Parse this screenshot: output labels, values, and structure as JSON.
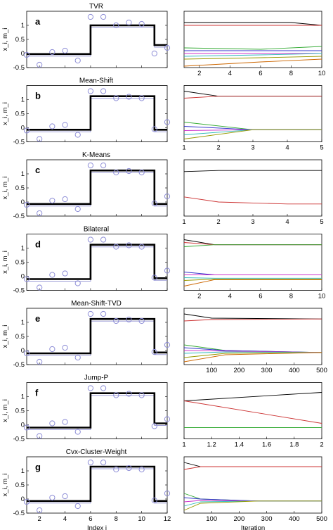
{
  "left_xticks": [
    "2",
    "4",
    "6",
    "8",
    "10",
    "12"
  ],
  "left_ylabel": "x_i, m_i",
  "left_xlabel": "Index i",
  "right_xlabel": "Iteration",
  "colors": {
    "step": "#000000",
    "samples": "#8c8cd6",
    "aux": "#a0a0d8",
    "traj": [
      "#000000",
      "#cc3333",
      "#33aa33",
      "#3333cc",
      "#cc33cc",
      "#33bbbb",
      "#999900",
      "#cc6600"
    ]
  },
  "panels": [
    {
      "letter": "a",
      "title": "TVR"
    },
    {
      "letter": "b",
      "title": "Mean-Shift"
    },
    {
      "letter": "c",
      "title": "K-Means"
    },
    {
      "letter": "d",
      "title": "Bilateral"
    },
    {
      "letter": "e",
      "title": "Mean-Shift-TVD"
    },
    {
      "letter": "f",
      "title": "Jump-P"
    },
    {
      "letter": "g",
      "title": "Cvx-Cluster-Weight"
    }
  ],
  "chart_data": [
    {
      "type": "line",
      "panel": "a",
      "title": "TVR",
      "xlabel": "",
      "ylabel": "x_i, m_i",
      "xlim": [
        1,
        12
      ],
      "ylim": [
        -0.5,
        1.5
      ],
      "yticks": [
        -0.5,
        0,
        0.5,
        1
      ],
      "samples": {
        "x": [
          1,
          2,
          3,
          4,
          5,
          6,
          7,
          8,
          9,
          10,
          11,
          12
        ],
        "y": [
          -0.05,
          -0.4,
          0.05,
          0.1,
          -0.25,
          1.3,
          1.3,
          1.0,
          1.1,
          1.05,
          0.0,
          0.2
        ]
      },
      "estimate": {
        "x": [
          1,
          6,
          6,
          11,
          11,
          12
        ],
        "y": [
          -0.02,
          -0.02,
          1.0,
          1.0,
          0.3,
          0.3
        ]
      }
    },
    {
      "type": "line",
      "panel": "a-iter",
      "title": "",
      "xlabel": "",
      "ylabel": "",
      "xlim": [
        1,
        10
      ],
      "ylim": [
        -0.5,
        1.5
      ],
      "xticks": [
        2,
        4,
        6,
        8,
        10
      ],
      "series": [
        {
          "x": [
            1,
            6,
            8,
            10
          ],
          "y": [
            1.1,
            1.1,
            1.1,
            1.0
          ]
        },
        {
          "x": [
            1,
            10
          ],
          "y": [
            1.0,
            1.0
          ]
        },
        {
          "x": [
            1,
            6,
            10
          ],
          "y": [
            0.2,
            0.15,
            0.25
          ]
        },
        {
          "x": [
            1,
            6,
            10
          ],
          "y": [
            0.1,
            0.1,
            0.1
          ]
        },
        {
          "x": [
            1,
            6,
            10
          ],
          "y": [
            0.0,
            0.0,
            0.0
          ]
        },
        {
          "x": [
            1,
            6,
            10
          ],
          "y": [
            -0.1,
            -0.05,
            0.0
          ]
        },
        {
          "x": [
            1,
            6,
            10
          ],
          "y": [
            -0.2,
            -0.15,
            -0.1
          ]
        },
        {
          "x": [
            1,
            6,
            10
          ],
          "y": [
            -0.45,
            -0.3,
            -0.2
          ]
        }
      ]
    },
    {
      "type": "line",
      "panel": "b",
      "title": "Mean-Shift",
      "xlabel": "",
      "ylabel": "x_i, m_i",
      "xlim": [
        1,
        12
      ],
      "ylim": [
        -0.5,
        1.5
      ],
      "yticks": [
        -0.5,
        0,
        0.5,
        1
      ],
      "samples": {
        "x": [
          1,
          2,
          3,
          4,
          5,
          6,
          7,
          8,
          9,
          10,
          11,
          12
        ],
        "y": [
          -0.1,
          -0.4,
          0.05,
          0.1,
          -0.25,
          1.3,
          1.3,
          1.05,
          1.1,
          1.05,
          -0.05,
          0.2
        ]
      },
      "estimate": {
        "x": [
          1,
          6,
          6,
          11,
          11,
          12
        ],
        "y": [
          -0.07,
          -0.07,
          1.12,
          1.12,
          -0.07,
          -0.07
        ]
      }
    },
    {
      "type": "line",
      "panel": "b-iter",
      "title": "",
      "xlabel": "",
      "ylabel": "",
      "xlim": [
        1,
        5
      ],
      "ylim": [
        -0.5,
        1.5
      ],
      "xticks": [
        1,
        2,
        3,
        4,
        5
      ],
      "series": [
        {
          "x": [
            1,
            2,
            5
          ],
          "y": [
            1.3,
            1.12,
            1.12
          ]
        },
        {
          "x": [
            1,
            2,
            5
          ],
          "y": [
            1.05,
            1.12,
            1.12
          ]
        },
        {
          "x": [
            1,
            3,
            5
          ],
          "y": [
            0.2,
            -0.07,
            -0.07
          ]
        },
        {
          "x": [
            1,
            3,
            5
          ],
          "y": [
            0.05,
            -0.07,
            -0.07
          ]
        },
        {
          "x": [
            1,
            3,
            5
          ],
          "y": [
            -0.1,
            -0.07,
            -0.07
          ]
        },
        {
          "x": [
            1,
            3,
            5
          ],
          "y": [
            -0.25,
            -0.07,
            -0.07
          ]
        },
        {
          "x": [
            1,
            3,
            5
          ],
          "y": [
            -0.4,
            -0.07,
            -0.07
          ]
        }
      ]
    },
    {
      "type": "line",
      "panel": "c",
      "title": "K-Means",
      "xlabel": "",
      "ylabel": "x_i, m_i",
      "xlim": [
        1,
        12
      ],
      "ylim": [
        -0.5,
        1.5
      ],
      "yticks": [
        -0.5,
        0,
        0.5,
        1
      ],
      "samples": {
        "x": [
          1,
          2,
          3,
          4,
          5,
          6,
          7,
          8,
          9,
          10,
          11,
          12
        ],
        "y": [
          -0.1,
          -0.4,
          0.05,
          0.1,
          -0.25,
          1.3,
          1.3,
          1.05,
          1.1,
          1.05,
          -0.05,
          0.2
        ]
      },
      "estimate": {
        "x": [
          1,
          6,
          6,
          11,
          11,
          12
        ],
        "y": [
          -0.07,
          -0.07,
          1.12,
          1.12,
          -0.07,
          -0.07
        ]
      }
    },
    {
      "type": "line",
      "panel": "c-iter",
      "title": "",
      "xlabel": "",
      "ylabel": "",
      "xlim": [
        1,
        5
      ],
      "ylim": [
        -0.5,
        1.5
      ],
      "xticks": [
        1,
        2,
        3,
        4,
        5
      ],
      "series": [
        {
          "x": [
            1,
            2,
            5
          ],
          "y": [
            1.08,
            1.12,
            1.12
          ]
        },
        {
          "x": [
            1,
            2,
            4,
            5
          ],
          "y": [
            0.18,
            0.0,
            -0.07,
            -0.07
          ]
        }
      ]
    },
    {
      "type": "line",
      "panel": "d",
      "title": "Bilateral",
      "xlabel": "",
      "ylabel": "x_i, m_i",
      "xlim": [
        1,
        12
      ],
      "ylim": [
        -0.5,
        1.5
      ],
      "yticks": [
        -0.5,
        0,
        0.5,
        1
      ],
      "samples": {
        "x": [
          1,
          2,
          3,
          4,
          5,
          6,
          7,
          8,
          9,
          10,
          11,
          12
        ],
        "y": [
          -0.1,
          -0.4,
          0.05,
          0.1,
          -0.25,
          1.3,
          1.3,
          1.05,
          1.1,
          1.05,
          -0.05,
          0.2
        ]
      },
      "estimate": {
        "x": [
          1,
          6,
          6,
          11,
          11,
          12
        ],
        "y": [
          -0.1,
          -0.1,
          1.12,
          1.12,
          -0.07,
          -0.07
        ]
      }
    },
    {
      "type": "line",
      "panel": "d-iter",
      "title": "",
      "xlabel": "",
      "ylabel": "",
      "xlim": [
        1,
        10
      ],
      "ylim": [
        -0.5,
        1.5
      ],
      "xticks": [
        2,
        4,
        6,
        8,
        10
      ],
      "series": [
        {
          "x": [
            1,
            3,
            10
          ],
          "y": [
            1.3,
            1.12,
            1.12
          ]
        },
        {
          "x": [
            1,
            3,
            10
          ],
          "y": [
            1.2,
            1.12,
            1.12
          ]
        },
        {
          "x": [
            1,
            3,
            10
          ],
          "y": [
            1.05,
            1.12,
            1.12
          ]
        },
        {
          "x": [
            1,
            3,
            10
          ],
          "y": [
            0.15,
            0.05,
            0.05
          ]
        },
        {
          "x": [
            1,
            3,
            10
          ],
          "y": [
            0.05,
            0.05,
            0.05
          ]
        },
        {
          "x": [
            1,
            3,
            10
          ],
          "y": [
            -0.05,
            -0.07,
            -0.07
          ]
        },
        {
          "x": [
            1,
            3,
            10
          ],
          "y": [
            -0.15,
            -0.1,
            -0.1
          ]
        },
        {
          "x": [
            1,
            3,
            10
          ],
          "y": [
            -0.35,
            -0.12,
            -0.12
          ]
        }
      ]
    },
    {
      "type": "line",
      "panel": "e",
      "title": "Mean-Shift-TVD",
      "xlabel": "",
      "ylabel": "x_i, m_i",
      "xlim": [
        1,
        12
      ],
      "ylim": [
        -0.5,
        1.5
      ],
      "yticks": [
        -0.5,
        0,
        0.5,
        1
      ],
      "samples": {
        "x": [
          1,
          2,
          3,
          4,
          5,
          6,
          7,
          8,
          9,
          10,
          11,
          12
        ],
        "y": [
          -0.1,
          -0.4,
          0.05,
          0.1,
          -0.25,
          1.3,
          1.3,
          1.05,
          1.1,
          1.05,
          -0.05,
          0.2
        ]
      },
      "estimate": {
        "x": [
          1,
          6,
          6,
          11,
          11,
          12
        ],
        "y": [
          -0.1,
          -0.1,
          1.12,
          1.12,
          -0.07,
          -0.07
        ]
      }
    },
    {
      "type": "line",
      "panel": "e-iter",
      "title": "",
      "xlabel": "",
      "ylabel": "",
      "xlim": [
        0,
        500
      ],
      "ylim": [
        -0.5,
        1.5
      ],
      "xticks": [
        100,
        200,
        300,
        400,
        500
      ],
      "series": [
        {
          "x": [
            0,
            100,
            500
          ],
          "y": [
            1.3,
            1.15,
            1.12
          ]
        },
        {
          "x": [
            0,
            100,
            500
          ],
          "y": [
            1.05,
            1.1,
            1.12
          ]
        },
        {
          "x": [
            0,
            150,
            500
          ],
          "y": [
            0.2,
            0.0,
            -0.07
          ]
        },
        {
          "x": [
            0,
            150,
            500
          ],
          "y": [
            0.1,
            0.0,
            -0.07
          ]
        },
        {
          "x": [
            0,
            150,
            500
          ],
          "y": [
            0.0,
            -0.02,
            -0.07
          ]
        },
        {
          "x": [
            0,
            150,
            500
          ],
          "y": [
            -0.1,
            -0.05,
            -0.07
          ]
        },
        {
          "x": [
            0,
            150,
            500
          ],
          "y": [
            -0.25,
            -0.1,
            -0.07
          ]
        },
        {
          "x": [
            0,
            150,
            500
          ],
          "y": [
            -0.4,
            -0.15,
            -0.07
          ]
        }
      ]
    },
    {
      "type": "line",
      "panel": "f",
      "title": "Jump-P",
      "xlabel": "",
      "ylabel": "x_i, m_i",
      "xlim": [
        1,
        12
      ],
      "ylim": [
        -0.5,
        1.5
      ],
      "yticks": [
        -0.5,
        0,
        0.5,
        1
      ],
      "samples": {
        "x": [
          1,
          2,
          3,
          4,
          5,
          6,
          7,
          8,
          9,
          10,
          11,
          12
        ],
        "y": [
          -0.1,
          -0.4,
          0.05,
          0.1,
          -0.25,
          1.3,
          1.3,
          1.05,
          1.1,
          1.05,
          -0.05,
          0.2
        ]
      },
      "estimate": {
        "x": [
          1,
          6,
          6,
          11,
          11,
          12
        ],
        "y": [
          -0.1,
          -0.1,
          1.12,
          1.12,
          0.05,
          0.05
        ]
      }
    },
    {
      "type": "line",
      "panel": "f-iter",
      "title": "",
      "xlabel": "",
      "ylabel": "",
      "xlim": [
        1,
        2
      ],
      "ylim": [
        -0.5,
        1.5
      ],
      "xticks": [
        1,
        1.2,
        1.4,
        1.6,
        1.8,
        2
      ],
      "series": [
        {
          "x": [
            1,
            2
          ],
          "y": [
            0.85,
            1.15
          ]
        },
        {
          "x": [
            1,
            2
          ],
          "y": [
            0.85,
            0.05
          ]
        },
        {
          "x": [
            1,
            2
          ],
          "y": [
            -0.1,
            -0.1
          ]
        }
      ]
    },
    {
      "type": "line",
      "panel": "g",
      "title": "Cvx-Cluster-Weight",
      "xlabel": "Index i",
      "ylabel": "x_i, m_i",
      "xlim": [
        1,
        12
      ],
      "ylim": [
        -0.5,
        1.5
      ],
      "yticks": [
        -0.5,
        0,
        0.5,
        1
      ],
      "xticks": [
        2,
        4,
        6,
        8,
        10,
        12
      ],
      "samples": {
        "x": [
          1,
          2,
          3,
          4,
          5,
          6,
          7,
          8,
          9,
          10,
          11,
          12
        ],
        "y": [
          -0.1,
          -0.4,
          0.05,
          0.1,
          -0.25,
          1.3,
          1.3,
          1.05,
          1.1,
          1.05,
          -0.05,
          0.2
        ]
      },
      "estimate": {
        "x": [
          1,
          6,
          6,
          11,
          11,
          12
        ],
        "y": [
          -0.07,
          -0.07,
          1.15,
          1.15,
          -0.07,
          -0.07
        ]
      }
    },
    {
      "type": "line",
      "panel": "g-iter",
      "title": "",
      "xlabel": "Iteration",
      "ylabel": "",
      "xlim": [
        0,
        500
      ],
      "ylim": [
        -0.5,
        1.5
      ],
      "xticks": [
        100,
        200,
        300,
        400,
        500
      ],
      "series": [
        {
          "x": [
            0,
            60,
            500
          ],
          "y": [
            1.3,
            1.15,
            1.15
          ]
        },
        {
          "x": [
            0,
            60,
            500
          ],
          "y": [
            1.05,
            1.15,
            1.15
          ]
        },
        {
          "x": [
            0,
            60,
            270,
            500
          ],
          "y": [
            0.2,
            0.0,
            -0.07,
            -0.07
          ]
        },
        {
          "x": [
            0,
            60,
            270,
            500
          ],
          "y": [
            0.05,
            0.0,
            -0.07,
            -0.07
          ]
        },
        {
          "x": [
            0,
            60,
            270,
            500
          ],
          "y": [
            -0.1,
            -0.05,
            -0.07,
            -0.07
          ]
        },
        {
          "x": [
            0,
            60,
            270,
            500
          ],
          "y": [
            -0.25,
            -0.1,
            -0.07,
            -0.07
          ]
        },
        {
          "x": [
            0,
            60,
            270,
            500
          ],
          "y": [
            -0.4,
            -0.15,
            -0.07,
            -0.07
          ]
        }
      ]
    }
  ]
}
